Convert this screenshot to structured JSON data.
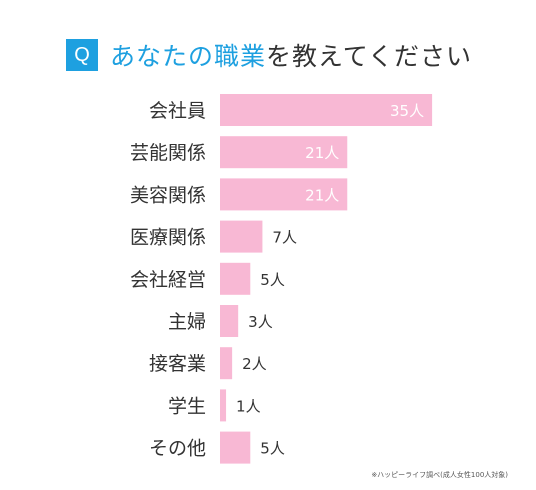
{
  "question": {
    "badge": "Q",
    "title_highlight": "あなたの職業",
    "title_rest": "を教えてください"
  },
  "chart_data": {
    "type": "bar",
    "orientation": "horizontal",
    "categories": [
      "会社員",
      "芸能関係",
      "美容関係",
      "医療関係",
      "会社経営",
      "主婦",
      "接客業",
      "学生",
      "その他"
    ],
    "values": [
      35,
      21,
      21,
      7,
      5,
      3,
      2,
      1,
      5
    ],
    "value_labels": [
      "35人",
      "21人",
      "21人",
      "7人",
      "5人",
      "3人",
      "2人",
      "1人",
      "5人"
    ],
    "unit": "人",
    "bar_color": "#f8b8d4",
    "label_inside_color": "#ffffff",
    "label_outside_color": "#333333"
  },
  "footnote": "※ハッピーライフ調べ(成人女性100人対象)"
}
